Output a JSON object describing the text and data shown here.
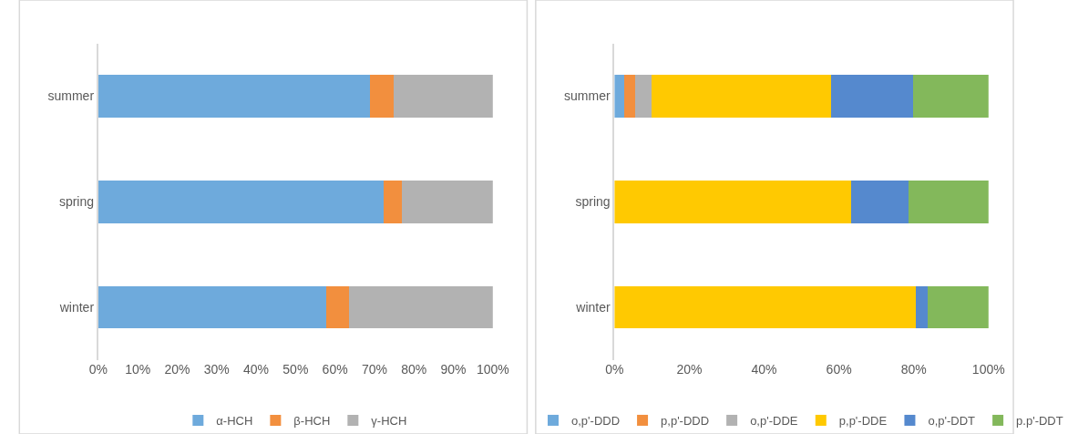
{
  "chart_data": [
    {
      "type": "bar",
      "orientation": "horizontal",
      "stacked": true,
      "categories": [
        "summer",
        "spring",
        "winter"
      ],
      "series": [
        {
          "name": "α-HCH",
          "color": "#6eaadc",
          "values": [
            68.9,
            72.4,
            57.7
          ]
        },
        {
          "name": "β-HCH",
          "color": "#f28f3e",
          "values": [
            5.9,
            4.6,
            5.8
          ]
        },
        {
          "name": "γ-HCH",
          "color": "#b2b2b2",
          "values": [
            25.2,
            23.0,
            36.5
          ]
        }
      ],
      "xlim": [
        0,
        100
      ],
      "xticks": [
        {
          "value": 0,
          "label": "0%"
        },
        {
          "value": 10,
          "label": "10%"
        },
        {
          "value": 20,
          "label": "20%"
        },
        {
          "value": 30,
          "label": "30%"
        },
        {
          "value": 40,
          "label": "40%"
        },
        {
          "value": 50,
          "label": "50%"
        },
        {
          "value": 60,
          "label": "60%"
        },
        {
          "value": 70,
          "label": "70%"
        },
        {
          "value": 80,
          "label": "80%"
        },
        {
          "value": 90,
          "label": "90%"
        },
        {
          "value": 100,
          "label": "100%"
        }
      ],
      "grid": false,
      "legend": "bottom"
    },
    {
      "type": "bar",
      "orientation": "horizontal",
      "stacked": true,
      "categories": [
        "summer",
        "spring",
        "winter"
      ],
      "series": [
        {
          "name": "o,p'-DDD",
          "color": "#6eaadc",
          "values": [
            2.6,
            0,
            0
          ]
        },
        {
          "name": "p,p'-DDD",
          "color": "#f28f3e",
          "values": [
            3.0,
            0,
            0
          ]
        },
        {
          "name": "o,p'-DDE",
          "color": "#b2b2b2",
          "values": [
            4.4,
            0,
            0
          ]
        },
        {
          "name": "p,p'-DDE",
          "color": "#ffc901",
          "values": [
            47.8,
            63.3,
            80.5
          ]
        },
        {
          "name": "o,p'-DDT",
          "color": "#5589ce",
          "values": [
            22.0,
            15.2,
            3.2
          ]
        },
        {
          "name": "p.p'-DDT",
          "color": "#83b85b",
          "values": [
            20.2,
            21.5,
            16.3
          ]
        }
      ],
      "xlim": [
        0,
        100
      ],
      "xticks": [
        {
          "value": 0,
          "label": "0%"
        },
        {
          "value": 20,
          "label": "20%"
        },
        {
          "value": 40,
          "label": "40%"
        },
        {
          "value": 60,
          "label": "60%"
        },
        {
          "value": 80,
          "label": "80%"
        },
        {
          "value": 100,
          "label": "100%"
        }
      ],
      "grid": false,
      "legend": "bottom"
    }
  ]
}
